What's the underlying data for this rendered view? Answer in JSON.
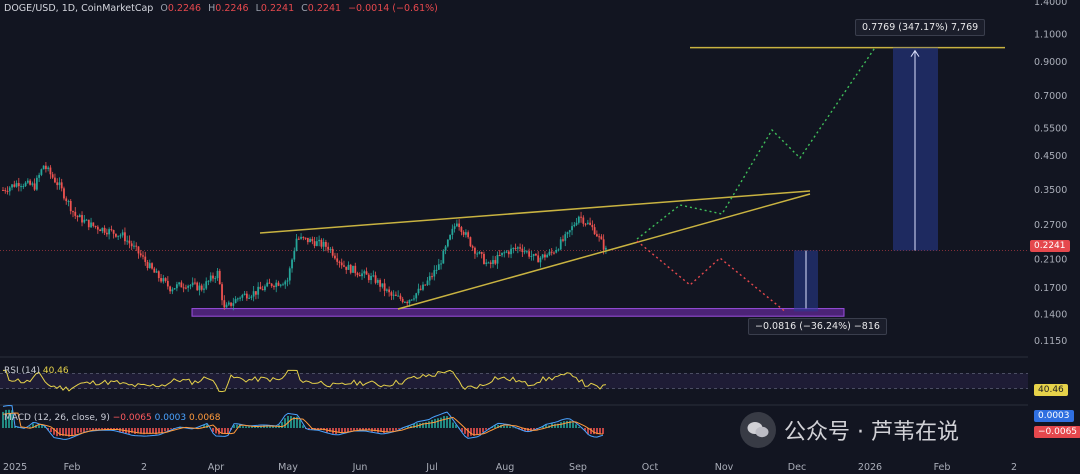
{
  "header": {
    "pair": "DOGE/USD, 1D, CoinMarketCap",
    "o_label": "O",
    "o_value": "0.2246",
    "h_label": "H",
    "h_value": "0.2246",
    "l_label": "L",
    "l_value": "0.2241",
    "c_label": "C",
    "c_value": "0.2241",
    "change": "−0.0014 (−0.61%)"
  },
  "chart_data": [
    {
      "type": "candlestick",
      "title": "",
      "x_ticks": [
        "2025",
        "Feb",
        "2",
        "Apr",
        "May",
        "Jun",
        "Jul",
        "Aug",
        "Sep",
        "Oct",
        "Nov",
        "Dec",
        "2026",
        "Feb",
        "2"
      ],
      "y_ticks": [
        "1.4000",
        "1.1000",
        "0.9000",
        "0.7000",
        "0.5500",
        "0.4500",
        "0.3500",
        "0.2700",
        "0.2100",
        "0.1700",
        "0.1400",
        "0.1150"
      ],
      "y_scale": "log",
      "last_price": "0.2241",
      "close_path": [
        [
          "2025-01-01",
          0.35
        ],
        [
          "2025-01-08",
          0.37
        ],
        [
          "2025-01-15",
          0.36
        ],
        [
          "2025-01-19",
          0.42
        ],
        [
          "2025-01-26",
          0.36
        ],
        [
          "2025-02-02",
          0.29
        ],
        [
          "2025-02-09",
          0.27
        ],
        [
          "2025-02-16",
          0.26
        ],
        [
          "2025-02-23",
          0.25
        ],
        [
          "2025-03-02",
          0.22
        ],
        [
          "2025-03-09",
          0.19
        ],
        [
          "2025-03-16",
          0.17
        ],
        [
          "2025-03-23",
          0.175
        ],
        [
          "2025-03-30",
          0.17
        ],
        [
          "2025-04-06",
          0.19
        ],
        [
          "2025-04-09",
          0.145
        ],
        [
          "2025-04-16",
          0.16
        ],
        [
          "2025-04-23",
          0.165
        ],
        [
          "2025-04-30",
          0.175
        ],
        [
          "2025-05-07",
          0.18
        ],
        [
          "2025-05-11",
          0.245
        ],
        [
          "2025-05-18",
          0.24
        ],
        [
          "2025-05-25",
          0.23
        ],
        [
          "2025-06-01",
          0.2
        ],
        [
          "2025-06-08",
          0.19
        ],
        [
          "2025-06-15",
          0.18
        ],
        [
          "2025-06-22",
          0.16
        ],
        [
          "2025-06-29",
          0.155
        ],
        [
          "2025-07-06",
          0.17
        ],
        [
          "2025-07-13",
          0.2
        ],
        [
          "2025-07-21",
          0.28
        ],
        [
          "2025-07-28",
          0.23
        ],
        [
          "2025-08-04",
          0.2
        ],
        [
          "2025-08-11",
          0.22
        ],
        [
          "2025-08-18",
          0.23
        ],
        [
          "2025-08-25",
          0.21
        ],
        [
          "2025-09-01",
          0.22
        ],
        [
          "2025-09-08",
          0.25
        ],
        [
          "2025-09-13",
          0.29
        ],
        [
          "2025-09-20",
          0.26
        ],
        [
          "2025-09-25",
          0.2241
        ]
      ],
      "support_zone": [
        0.138,
        0.146
      ],
      "projection_up": {
        "target": 1.0,
        "start": 0.2241
      },
      "projection_down": {
        "target": 0.143
      },
      "measure_up": "0.7769 (347.17%) 7,769",
      "measure_down": "−0.0816 (−36.24%) −816"
    },
    {
      "type": "line",
      "title": "",
      "label": "RSI (14)",
      "value": "40.46",
      "value_tag": "40.46",
      "y_range": [
        0,
        100
      ],
      "bands": [
        30,
        70
      ]
    },
    {
      "type": "histogram",
      "title": "",
      "label": "MACD (12, 26, close, 9)",
      "hist": "−0.0065",
      "macd": "0.0003",
      "signal": "0.0068",
      "tags": [
        "0.0003",
        "−0.0065"
      ]
    }
  ],
  "colors": {
    "background": "#121521",
    "up": "#26a69a",
    "down": "#ef5350",
    "trendline": "#c9b341",
    "zone": "#7b2fbf",
    "price_tag": "#e5484d",
    "measure_fill": "#1e2a5a"
  },
  "watermark": {
    "text": "公众号 · 芦苇在说",
    "icon": "wechat-icon"
  }
}
